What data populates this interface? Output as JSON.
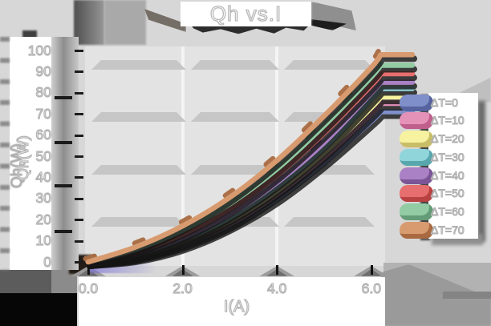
{
  "title": "Qh vs.I",
  "y_axis": {
    "label": "Qh(W)",
    "ticks": [
      "100",
      "90",
      "80",
      "70",
      "60",
      "50",
      "40",
      "30",
      "20",
      "10",
      "0"
    ]
  },
  "x_axis": {
    "label": "I(A)",
    "ticks": [
      "0.0",
      "2.0",
      "4.0",
      "6.0"
    ]
  },
  "colors": {
    "background": "#d7d7d7",
    "plot_background": "#e3e3e3",
    "gridline_band": "#c6c6c6",
    "panel": "#ffffff",
    "text_fill": "#ffffff",
    "text_outline": "#b4b4b4",
    "shadow_dark": "#141414"
  },
  "chart_data": {
    "type": "line",
    "title": "Qh vs.I",
    "xlabel": "I(A)",
    "ylabel": "Qh(W)",
    "xlim": [
      0,
      6.4
    ],
    "ylim": [
      0,
      100
    ],
    "grid": "horizontal-bands",
    "legend_position": "right",
    "x": [
      0,
      1,
      2,
      3,
      4,
      5,
      6,
      6.2
    ],
    "series": [
      {
        "name": "ΔT=0",
        "color": "#7e8fca",
        "shade": "#56639e",
        "values": [
          0,
          2,
          7.5,
          17,
          30,
          47,
          66.5,
          71
        ]
      },
      {
        "name": "ΔT=10",
        "color": "#e592b8",
        "shade": "#bf5f8c",
        "values": [
          0,
          2.5,
          8.5,
          18,
          32,
          49.5,
          70,
          75
        ]
      },
      {
        "name": "ΔT=20",
        "color": "#f6f2a0",
        "shade": "#c9bd67",
        "values": [
          0,
          3,
          9.5,
          19.5,
          33.5,
          51.5,
          73,
          78
        ]
      },
      {
        "name": "ΔT=30",
        "color": "#8fd5da",
        "shade": "#58a7ad",
        "values": [
          0,
          3.5,
          10.5,
          21,
          35.5,
          54,
          77,
          82
        ]
      },
      {
        "name": "ΔT=40",
        "color": "#a981c4",
        "shade": "#7b5596",
        "values": [
          0,
          4,
          11.5,
          22.5,
          37.5,
          56.5,
          80,
          85
        ]
      },
      {
        "name": "ΔT=50",
        "color": "#e76e6e",
        "shade": "#b84242",
        "values": [
          0,
          5,
          13,
          25,
          41,
          61,
          83.5,
          89
        ]
      },
      {
        "name": "ΔT=60",
        "color": "#92cba4",
        "shade": "#639c76",
        "values": [
          0,
          6,
          15,
          27.5,
          44,
          64.5,
          87.5,
          93
        ]
      },
      {
        "name": "ΔT=70",
        "color": "#d89b70",
        "shade": "#a96a41",
        "values": [
          0,
          7,
          17,
          30.5,
          48,
          69,
          92,
          98
        ]
      }
    ]
  }
}
